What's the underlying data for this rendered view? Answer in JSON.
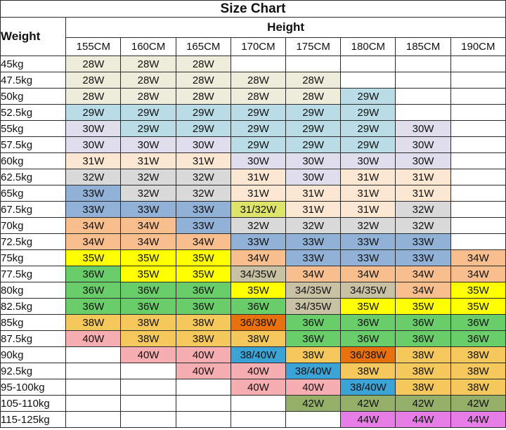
{
  "title": "Size Chart",
  "weight_header": "Weight",
  "height_header": "Height",
  "columns": [
    "155CM",
    "160CM",
    "165CM",
    "170CM",
    "175CM",
    "180CM",
    "185CM",
    "190CM"
  ],
  "palette": {
    "white": "#ffffff",
    "cream": "#eeeddb",
    "aqua": "#b9dce6",
    "lavender": "#e0ddec",
    "peach": "#fbe7d2",
    "yellowgreen": "#dee46a",
    "gray": "#d9d9d9",
    "blue": "#91b1d6",
    "salmon": "#f9be8e",
    "khaki": "#c8c1a3",
    "yellow": "#ffff00",
    "green": "#69cd69",
    "amber": "#f5c85c",
    "darkorange": "#e8700d",
    "skyblue": "#3ba3d6",
    "pink": "#f7aeb2",
    "sage": "#93af68",
    "orchid": "#e77ee7"
  },
  "rows": [
    {
      "weight": "45kg",
      "cells": [
        [
          "28W",
          "cream"
        ],
        [
          "28W",
          "cream"
        ],
        [
          "28W",
          "cream"
        ],
        [
          "",
          "white"
        ],
        [
          "",
          "white"
        ],
        [
          "",
          "white"
        ],
        [
          "",
          "white"
        ],
        [
          "",
          "white"
        ]
      ]
    },
    {
      "weight": "47.5kg",
      "cells": [
        [
          "28W",
          "cream"
        ],
        [
          "28W",
          "cream"
        ],
        [
          "28W",
          "cream"
        ],
        [
          "28W",
          "cream"
        ],
        [
          "28W",
          "cream"
        ],
        [
          "",
          "white"
        ],
        [
          "",
          "white"
        ],
        [
          "",
          "white"
        ]
      ]
    },
    {
      "weight": "50kg",
      "cells": [
        [
          "28W",
          "cream"
        ],
        [
          "28W",
          "cream"
        ],
        [
          "28W",
          "cream"
        ],
        [
          "28W",
          "cream"
        ],
        [
          "28W",
          "cream"
        ],
        [
          "29W",
          "aqua"
        ],
        [
          "",
          "white"
        ],
        [
          "",
          "white"
        ]
      ]
    },
    {
      "weight": "52.5kg",
      "cells": [
        [
          "29W",
          "aqua"
        ],
        [
          "29W",
          "aqua"
        ],
        [
          "29W",
          "aqua"
        ],
        [
          "29W",
          "aqua"
        ],
        [
          "29W",
          "aqua"
        ],
        [
          "29W",
          "aqua"
        ],
        [
          "",
          "white"
        ],
        [
          "",
          "white"
        ]
      ]
    },
    {
      "weight": "55kg",
      "cells": [
        [
          "30W",
          "lavender"
        ],
        [
          "29W",
          "aqua"
        ],
        [
          "29W",
          "aqua"
        ],
        [
          "29W",
          "aqua"
        ],
        [
          "29W",
          "aqua"
        ],
        [
          "29W",
          "aqua"
        ],
        [
          "30W",
          "lavender"
        ],
        [
          "",
          "white"
        ]
      ]
    },
    {
      "weight": "57.5kg",
      "cells": [
        [
          "30W",
          "lavender"
        ],
        [
          "30W",
          "lavender"
        ],
        [
          "30W",
          "lavender"
        ],
        [
          "29W",
          "aqua"
        ],
        [
          "29W",
          "aqua"
        ],
        [
          "29W",
          "aqua"
        ],
        [
          "30W",
          "lavender"
        ],
        [
          "",
          "white"
        ]
      ]
    },
    {
      "weight": "60kg",
      "cells": [
        [
          "31W",
          "peach"
        ],
        [
          "31W",
          "peach"
        ],
        [
          "31W",
          "peach"
        ],
        [
          "30W",
          "lavender"
        ],
        [
          "30W",
          "lavender"
        ],
        [
          "30W",
          "lavender"
        ],
        [
          "30W",
          "lavender"
        ],
        [
          "",
          "white"
        ]
      ]
    },
    {
      "weight": "62.5kg",
      "cells": [
        [
          "32W",
          "gray"
        ],
        [
          "32W",
          "gray"
        ],
        [
          "32W",
          "gray"
        ],
        [
          "31W",
          "peach"
        ],
        [
          "30W",
          "lavender"
        ],
        [
          "31W",
          "peach"
        ],
        [
          "31W",
          "peach"
        ],
        [
          "",
          "white"
        ]
      ]
    },
    {
      "weight": "65kg",
      "cells": [
        [
          "33W",
          "blue"
        ],
        [
          "32W",
          "gray"
        ],
        [
          "32W",
          "gray"
        ],
        [
          "31W",
          "peach"
        ],
        [
          "31W",
          "peach"
        ],
        [
          "31W",
          "peach"
        ],
        [
          "31W",
          "peach"
        ],
        [
          "",
          "white"
        ]
      ]
    },
    {
      "weight": "67.5kg",
      "cells": [
        [
          "33W",
          "blue"
        ],
        [
          "33W",
          "blue"
        ],
        [
          "33W",
          "blue"
        ],
        [
          "31/32W",
          "yellowgreen"
        ],
        [
          "31W",
          "peach"
        ],
        [
          "31W",
          "peach"
        ],
        [
          "32W",
          "gray"
        ],
        [
          "",
          "white"
        ]
      ]
    },
    {
      "weight": "70kg",
      "cells": [
        [
          "34W",
          "salmon"
        ],
        [
          "34W",
          "salmon"
        ],
        [
          "33W",
          "blue"
        ],
        [
          "32W",
          "gray"
        ],
        [
          "32W",
          "gray"
        ],
        [
          "32W",
          "gray"
        ],
        [
          "32W",
          "gray"
        ],
        [
          "",
          "white"
        ]
      ]
    },
    {
      "weight": "72.5kg",
      "cells": [
        [
          "34W",
          "salmon"
        ],
        [
          "34W",
          "salmon"
        ],
        [
          "34W",
          "salmon"
        ],
        [
          "33W",
          "blue"
        ],
        [
          "33W",
          "blue"
        ],
        [
          "33W",
          "blue"
        ],
        [
          "33W",
          "blue"
        ],
        [
          "",
          "white"
        ]
      ]
    },
    {
      "weight": "75kg",
      "cells": [
        [
          "35W",
          "yellow"
        ],
        [
          "35W",
          "yellow"
        ],
        [
          "35W",
          "yellow"
        ],
        [
          "34W",
          "salmon"
        ],
        [
          "33W",
          "blue"
        ],
        [
          "33W",
          "blue"
        ],
        [
          "33W",
          "blue"
        ],
        [
          "34W",
          "salmon"
        ]
      ]
    },
    {
      "weight": "77.5kg",
      "cells": [
        [
          "36W",
          "green"
        ],
        [
          "35W",
          "yellow"
        ],
        [
          "35W",
          "yellow"
        ],
        [
          "34/35W",
          "khaki"
        ],
        [
          "34W",
          "salmon"
        ],
        [
          "34W",
          "salmon"
        ],
        [
          "34W",
          "salmon"
        ],
        [
          "34W",
          "salmon"
        ]
      ]
    },
    {
      "weight": "80kg",
      "cells": [
        [
          "36W",
          "green"
        ],
        [
          "36W",
          "green"
        ],
        [
          "36W",
          "green"
        ],
        [
          "35W",
          "yellow"
        ],
        [
          "34/35W",
          "khaki"
        ],
        [
          "34/35W",
          "khaki"
        ],
        [
          "34W",
          "salmon"
        ],
        [
          "35W",
          "yellow"
        ]
      ]
    },
    {
      "weight": "82.5kg",
      "cells": [
        [
          "36W",
          "green"
        ],
        [
          "36W",
          "green"
        ],
        [
          "36W",
          "green"
        ],
        [
          "36W",
          "green"
        ],
        [
          "34/35W",
          "khaki"
        ],
        [
          "35W",
          "yellow"
        ],
        [
          "35W",
          "yellow"
        ],
        [
          "35W",
          "yellow"
        ]
      ]
    },
    {
      "weight": "85kg",
      "cells": [
        [
          "38W",
          "amber"
        ],
        [
          "38W",
          "amber"
        ],
        [
          "38W",
          "amber"
        ],
        [
          "36/38W",
          "darkorange"
        ],
        [
          "36W",
          "green"
        ],
        [
          "36W",
          "green"
        ],
        [
          "36W",
          "green"
        ],
        [
          "36W",
          "green"
        ]
      ]
    },
    {
      "weight": "87.5kg",
      "cells": [
        [
          "40W",
          "pink"
        ],
        [
          "38W",
          "amber"
        ],
        [
          "38W",
          "amber"
        ],
        [
          "38W",
          "amber"
        ],
        [
          "36W",
          "green"
        ],
        [
          "36W",
          "green"
        ],
        [
          "36W",
          "green"
        ],
        [
          "36W",
          "green"
        ]
      ]
    },
    {
      "weight": "90kg",
      "cells": [
        [
          "",
          "white"
        ],
        [
          "40W",
          "pink"
        ],
        [
          "40W",
          "pink"
        ],
        [
          "38/40W",
          "skyblue"
        ],
        [
          "38W",
          "amber"
        ],
        [
          "36/38W",
          "darkorange"
        ],
        [
          "38W",
          "amber"
        ],
        [
          "38W",
          "amber"
        ]
      ]
    },
    {
      "weight": "92.5kg",
      "cells": [
        [
          "",
          "white"
        ],
        [
          "",
          "white"
        ],
        [
          "40W",
          "pink"
        ],
        [
          "40W",
          "pink"
        ],
        [
          "38/40W",
          "skyblue"
        ],
        [
          "38W",
          "amber"
        ],
        [
          "38W",
          "amber"
        ],
        [
          "38W",
          "amber"
        ]
      ]
    },
    {
      "weight": "95-100kg",
      "cells": [
        [
          "",
          "white"
        ],
        [
          "",
          "white"
        ],
        [
          "",
          "white"
        ],
        [
          "40W",
          "pink"
        ],
        [
          "40W",
          "pink"
        ],
        [
          "38/40W",
          "skyblue"
        ],
        [
          "38W",
          "amber"
        ],
        [
          "38W",
          "amber"
        ]
      ]
    },
    {
      "weight": "105-110kg",
      "cells": [
        [
          "",
          "white"
        ],
        [
          "",
          "white"
        ],
        [
          "",
          "white"
        ],
        [
          "",
          "white"
        ],
        [
          "42W",
          "sage"
        ],
        [
          "42W",
          "sage"
        ],
        [
          "42W",
          "sage"
        ],
        [
          "42W",
          "sage"
        ]
      ]
    },
    {
      "weight": "115-125kg",
      "cells": [
        [
          "",
          "white"
        ],
        [
          "",
          "white"
        ],
        [
          "",
          "white"
        ],
        [
          "",
          "white"
        ],
        [
          "",
          "white"
        ],
        [
          "44W",
          "orchid"
        ],
        [
          "44W",
          "orchid"
        ],
        [
          "44W",
          "orchid"
        ]
      ]
    }
  ]
}
